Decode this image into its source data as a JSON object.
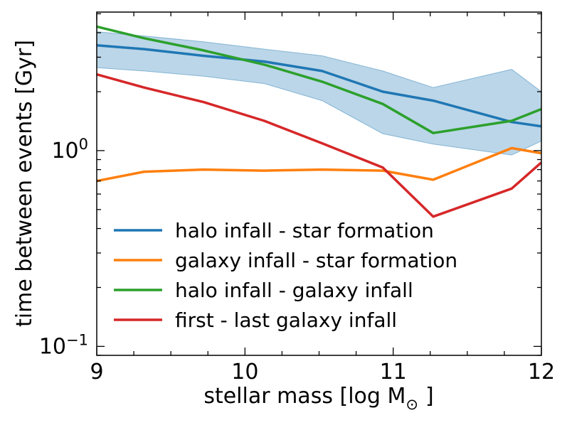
{
  "chart_data": {
    "type": "line",
    "xlabel": "stellar mass [log M",
    "xlabel_sub": "⊙",
    "xlabel_end": "]",
    "ylabel": "time between events [Gyr]",
    "xlim": [
      9,
      12
    ],
    "ylim": [
      0.09,
      5.1
    ],
    "yscale": "log",
    "x_ticks": [
      9,
      10,
      11,
      12
    ],
    "x_tick_labels": [
      "9",
      "10",
      "11",
      "12"
    ],
    "y_ticks": [
      {
        "value": 1,
        "base": "10",
        "exp": "0"
      },
      {
        "value": 0.1,
        "base": "10",
        "exp": "−1"
      }
    ],
    "x": [
      9.0,
      9.32,
      9.72,
      10.13,
      10.52,
      10.93,
      11.27,
      11.8,
      12.0
    ],
    "band": {
      "series": "halo infall - star formation",
      "upper": [
        4.05,
        3.85,
        3.6,
        3.3,
        3.05,
        2.55,
        2.1,
        2.6,
        2.0
      ],
      "lower": [
        2.65,
        2.55,
        2.4,
        2.2,
        1.8,
        1.22,
        1.08,
        0.95,
        1.12
      ]
    },
    "series": [
      {
        "name": "halo infall - star formation",
        "color": "#1f77b4",
        "values": [
          3.45,
          3.3,
          3.05,
          2.85,
          2.55,
          2.0,
          1.8,
          1.4,
          1.33
        ]
      },
      {
        "name": "galaxy infall - star formation",
        "color": "#ff7f0e",
        "values": [
          0.7,
          0.78,
          0.8,
          0.79,
          0.8,
          0.79,
          0.71,
          1.03,
          0.97
        ]
      },
      {
        "name": "halo infall - galaxy infall",
        "color": "#2ca02c",
        "values": [
          4.3,
          3.75,
          3.25,
          2.75,
          2.25,
          1.73,
          1.23,
          1.42,
          1.63
        ]
      },
      {
        "name": "first - last galaxy infall",
        "color": "#d62728",
        "values": [
          2.45,
          2.1,
          1.77,
          1.42,
          1.09,
          0.82,
          0.46,
          0.64,
          0.87
        ]
      }
    ],
    "legend_position": "lower-left",
    "grid": false
  }
}
